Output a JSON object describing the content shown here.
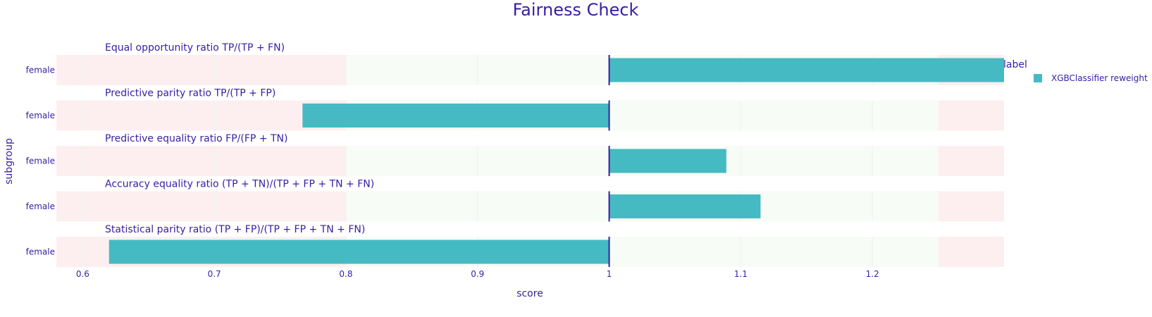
{
  "colors": {
    "text": "#371ea3",
    "bar": "#46bac2",
    "green_zone": "#f7fcf7",
    "red_zone": "#fdeff0",
    "grid": "#eef0f6",
    "reference_line": "#371ea3"
  },
  "chart_data": {
    "type": "bar",
    "orientation": "horizontal",
    "title": "Fairness Check",
    "xlabel": "score",
    "ylabel": "subgroup",
    "xlim": [
      0.58,
      1.3
    ],
    "x_ticks": [
      "0.6",
      "0.7",
      "0.8",
      "0.9",
      "1",
      "1.1",
      "1.2"
    ],
    "reference_value": 1,
    "acceptable_range": [
      0.8,
      1.25
    ],
    "legend": {
      "title": "label",
      "position": "top-right",
      "items": [
        {
          "name": "XGBClassifier reweight",
          "color": "#46bac2"
        }
      ]
    },
    "panels": [
      {
        "title": "Equal opportunity ratio     TP/(TP + FN)",
        "category": "female",
        "value": 1.3
      },
      {
        "title": "Predictive parity ratio     TP/(TP + FP)",
        "category": "female",
        "value": 0.767
      },
      {
        "title": "Predictive equality ratio   FP/(FP + TN)",
        "category": "female",
        "value": 1.089
      },
      {
        "title": "Accuracy equality ratio    (TP + TN)/(TP + FP + TN + FN)",
        "category": "female",
        "value": 1.115
      },
      {
        "title": "Statistical parity ratio   (TP + FP)/(TP + FP + TN + FN)",
        "category": "female",
        "value": 0.62
      }
    ]
  }
}
